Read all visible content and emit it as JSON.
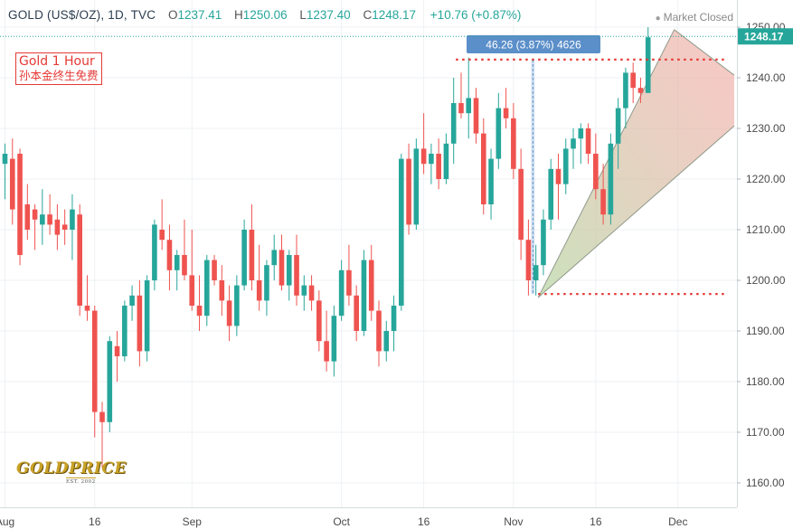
{
  "header": {
    "symbol": "GOLD (US$/OZ), 1D, TVC",
    "open_label": "O",
    "open": "1237.41",
    "high_label": "H",
    "high": "1250.06",
    "low_label": "L",
    "low": "1237.40",
    "close_label": "C",
    "close": "1248.17",
    "change": "+10.76 (+0.87%)"
  },
  "status": "Market Closed",
  "watermark": {
    "line1": "Gold 1 Hour",
    "line2": "孙本金终生免费"
  },
  "logo": {
    "name": "GOLDPRICE",
    "est": "EST. 2002"
  },
  "colors": {
    "up": "#26a69a",
    "down": "#ef5350",
    "price_tag": "#26a69a",
    "measure": "#5b8fc9",
    "level_line": "#e53935"
  },
  "chart_data": {
    "type": "candlestick",
    "x_labels": [
      {
        "i": 0,
        "text": "Aug"
      },
      {
        "i": 12,
        "text": "16"
      },
      {
        "i": 25,
        "text": "Sep"
      },
      {
        "i": 45,
        "text": "Oct"
      },
      {
        "i": 56,
        "text": "16"
      },
      {
        "i": 68,
        "text": "Nov"
      },
      {
        "i": 79,
        "text": "16"
      },
      {
        "i": 90,
        "text": "Dec"
      }
    ],
    "ylim": [
      1155,
      1256
    ],
    "y_ticks": [
      1160,
      1170,
      1180,
      1190,
      1200,
      1210,
      1220,
      1230,
      1240,
      1250
    ],
    "current_price": "1248.17",
    "candles": [
      [
        1223,
        1227,
        1216,
        1225
      ],
      [
        1224,
        1228,
        1211,
        1214
      ],
      [
        1225,
        1226,
        1203,
        1205
      ],
      [
        1215,
        1219,
        1208,
        1210
      ],
      [
        1214,
        1215,
        1206,
        1212
      ],
      [
        1211,
        1218,
        1207,
        1213
      ],
      [
        1213,
        1217,
        1209,
        1211
      ],
      [
        1212,
        1215,
        1206,
        1209
      ],
      [
        1211,
        1214,
        1207,
        1210
      ],
      [
        1210,
        1217,
        1204,
        1214
      ],
      [
        1213,
        1215,
        1193,
        1195
      ],
      [
        1195,
        1201,
        1192,
        1194
      ],
      [
        1194,
        1195,
        1169,
        1174
      ],
      [
        1174,
        1176,
        1163,
        1172
      ],
      [
        1172,
        1189,
        1170,
        1188
      ],
      [
        1187,
        1190,
        1180,
        1185
      ],
      [
        1185,
        1196,
        1184,
        1195
      ],
      [
        1195,
        1199,
        1192,
        1197
      ],
      [
        1197,
        1200,
        1183,
        1186
      ],
      [
        1186,
        1201,
        1184,
        1200
      ],
      [
        1200,
        1212,
        1198,
        1211
      ],
      [
        1210,
        1216,
        1206,
        1208
      ],
      [
        1208,
        1211,
        1198,
        1202
      ],
      [
        1202,
        1206,
        1198,
        1205
      ],
      [
        1205,
        1212,
        1200,
        1201
      ],
      [
        1201,
        1210,
        1194,
        1195
      ],
      [
        1195,
        1201,
        1190,
        1193
      ],
      [
        1193,
        1205,
        1191,
        1204
      ],
      [
        1204,
        1205,
        1199,
        1200
      ],
      [
        1200,
        1203,
        1193,
        1196
      ],
      [
        1196,
        1199,
        1188,
        1191
      ],
      [
        1191,
        1201,
        1189,
        1199
      ],
      [
        1199,
        1212,
        1198,
        1210
      ],
      [
        1210,
        1215,
        1198,
        1200
      ],
      [
        1200,
        1207,
        1194,
        1196
      ],
      [
        1196,
        1204,
        1193,
        1203
      ],
      [
        1203,
        1209,
        1200,
        1206
      ],
      [
        1206,
        1209,
        1198,
        1199
      ],
      [
        1199,
        1206,
        1196,
        1205
      ],
      [
        1205,
        1209,
        1195,
        1197
      ],
      [
        1197,
        1201,
        1194,
        1199
      ],
      [
        1199,
        1201,
        1194,
        1196
      ],
      [
        1196,
        1198,
        1186,
        1188
      ],
      [
        1188,
        1194,
        1182,
        1184
      ],
      [
        1184,
        1195,
        1181,
        1193
      ],
      [
        1193,
        1204,
        1192,
        1202
      ],
      [
        1202,
        1207,
        1195,
        1197
      ],
      [
        1197,
        1199,
        1188,
        1190
      ],
      [
        1190,
        1206,
        1189,
        1204
      ],
      [
        1204,
        1207,
        1192,
        1194
      ],
      [
        1194,
        1196,
        1183,
        1186
      ],
      [
        1186,
        1192,
        1184,
        1190
      ],
      [
        1190,
        1197,
        1186,
        1195
      ],
      [
        1195,
        1225,
        1194,
        1224
      ],
      [
        1224,
        1227,
        1209,
        1211
      ],
      [
        1211,
        1228,
        1210,
        1226
      ],
      [
        1226,
        1233,
        1221,
        1223
      ],
      [
        1223,
        1227,
        1219,
        1225
      ],
      [
        1225,
        1228,
        1218,
        1220
      ],
      [
        1220,
        1229,
        1219,
        1227
      ],
      [
        1227,
        1240,
        1223,
        1235
      ],
      [
        1235,
        1241,
        1232,
        1233
      ],
      [
        1233,
        1244,
        1228,
        1236
      ],
      [
        1236,
        1238,
        1227,
        1229
      ],
      [
        1229,
        1232,
        1213,
        1215
      ],
      [
        1215,
        1226,
        1212,
        1224
      ],
      [
        1224,
        1237,
        1222,
        1234
      ],
      [
        1234,
        1238,
        1230,
        1232
      ],
      [
        1232,
        1235,
        1220,
        1222
      ],
      [
        1222,
        1226,
        1204,
        1208
      ],
      [
        1208,
        1212,
        1197,
        1200
      ],
      [
        1200,
        1207,
        1197,
        1203
      ],
      [
        1203,
        1214,
        1201,
        1212
      ],
      [
        1212,
        1224,
        1210,
        1222
      ],
      [
        1222,
        1225,
        1212,
        1219
      ],
      [
        1219,
        1228,
        1217,
        1226
      ],
      [
        1226,
        1230,
        1222,
        1228
      ],
      [
        1228,
        1231,
        1223,
        1230
      ],
      [
        1230,
        1231,
        1223,
        1225
      ],
      [
        1225,
        1229,
        1216,
        1218
      ],
      [
        1218,
        1223,
        1211,
        1213
      ],
      [
        1213,
        1229,
        1211,
        1227
      ],
      [
        1227,
        1236,
        1222,
        1234
      ],
      [
        1234,
        1242,
        1230,
        1241
      ],
      [
        1241,
        1243,
        1235,
        1238
      ],
      [
        1238,
        1240,
        1235,
        1237
      ],
      [
        1237,
        1250,
        1237,
        1248
      ]
    ],
    "measure_label": "46.26 (3.87%) 4626",
    "levels": [
      1243.6,
      1197.3
    ]
  }
}
